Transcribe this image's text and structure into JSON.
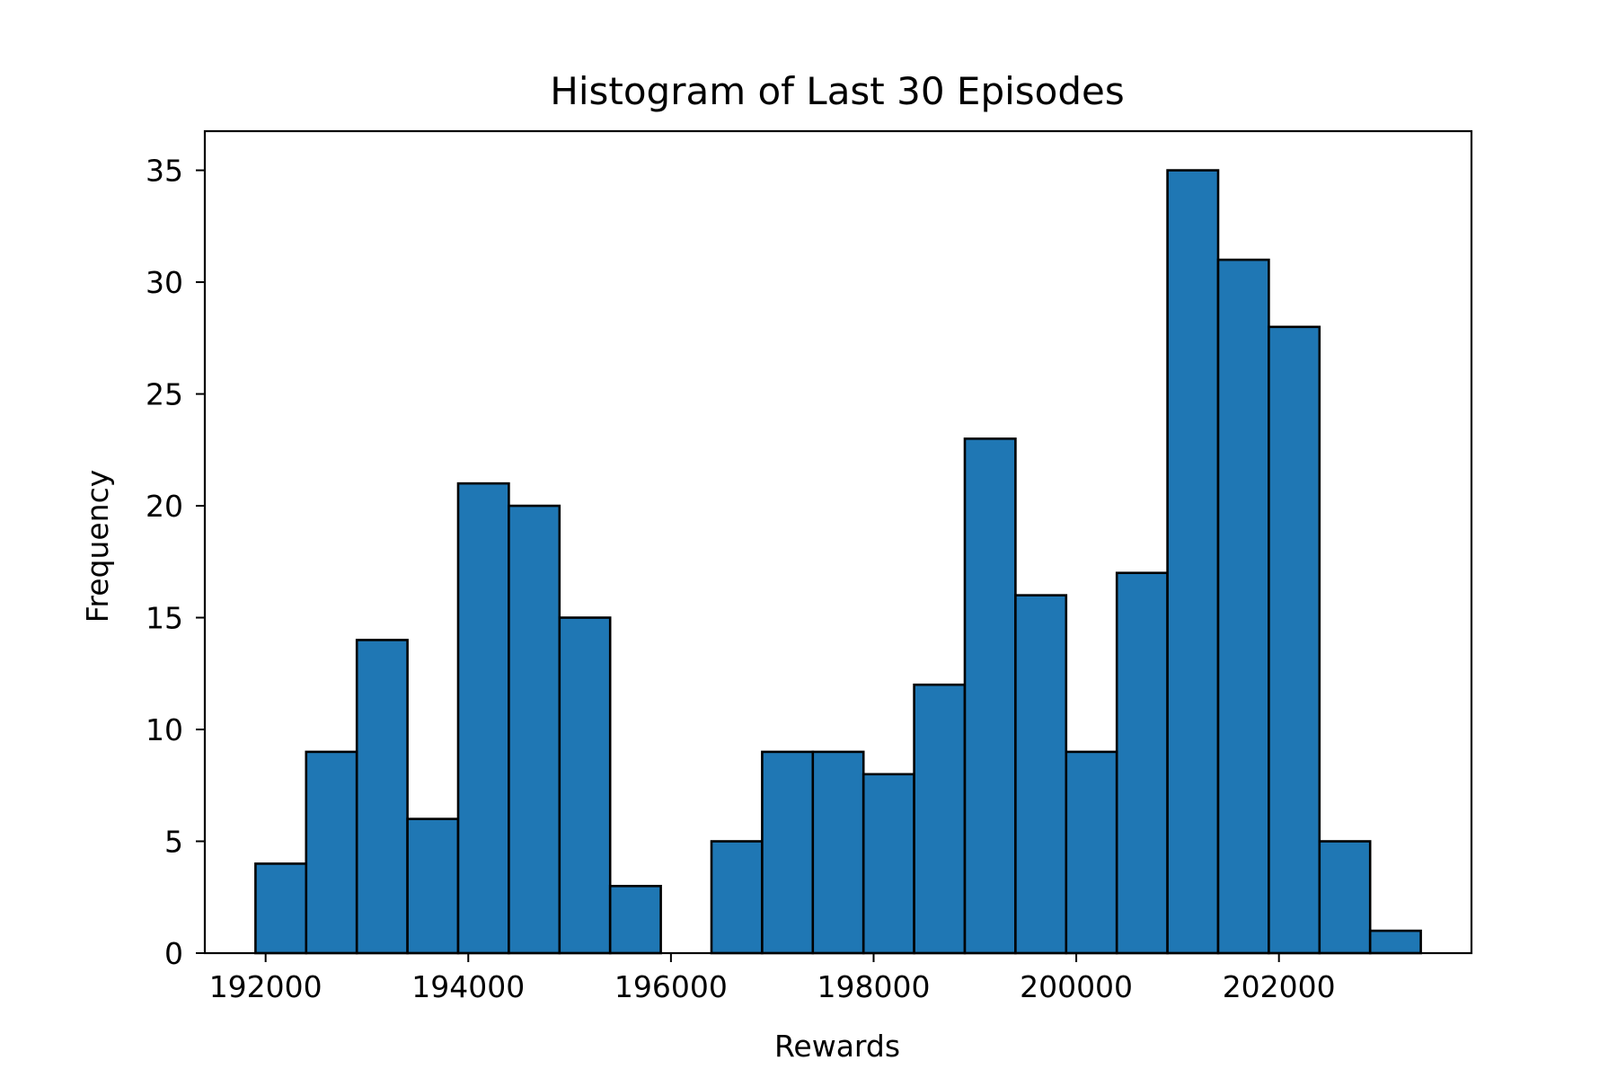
{
  "chart_data": {
    "type": "bar",
    "title": "Histogram of Last 30 Episodes",
    "xlabel": "Rewards",
    "ylabel": "Frequency",
    "bar_color": "#1f77b4",
    "edge_color": "#000000",
    "xlim": [
      191400,
      203900
    ],
    "ylim": [
      0,
      36.75
    ],
    "xticks": [
      {
        "value": 192000,
        "label": "192000"
      },
      {
        "value": 194000,
        "label": "194000"
      },
      {
        "value": 196000,
        "label": "196000"
      },
      {
        "value": 198000,
        "label": "198000"
      },
      {
        "value": 200000,
        "label": "200000"
      },
      {
        "value": 202000,
        "label": "202000"
      }
    ],
    "yticks": [
      {
        "value": 0,
        "label": "0"
      },
      {
        "value": 5,
        "label": "5"
      },
      {
        "value": 10,
        "label": "10"
      },
      {
        "value": 15,
        "label": "15"
      },
      {
        "value": 20,
        "label": "20"
      },
      {
        "value": 25,
        "label": "25"
      },
      {
        "value": 30,
        "label": "30"
      },
      {
        "value": 35,
        "label": "35"
      }
    ],
    "bin_start": 191900,
    "bin_width": 500,
    "counts": [
      4,
      9,
      14,
      6,
      21,
      20,
      15,
      3,
      0,
      5,
      9,
      9,
      8,
      12,
      23,
      16,
      9,
      17,
      35,
      31,
      28,
      5,
      1
    ]
  }
}
